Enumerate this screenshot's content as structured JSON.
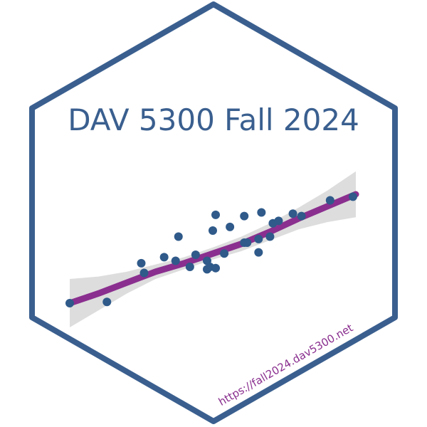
{
  "sticker": {
    "title": "DAV 5300 Fall 2024",
    "url": "https://fall2024.dav5300.net"
  },
  "colors": {
    "border": "#3a5f8f",
    "title": "#3a5f8f",
    "points": "#2f5a8a",
    "trend_line": "#8a2f8f",
    "ribbon": "#d9d9d9",
    "url": "#8a2f8f",
    "background": "#ffffff"
  },
  "chart_data": {
    "type": "scatter",
    "smooth_fit": true,
    "confidence_ribbon": true,
    "points": [
      [
        0.0,
        0.0
      ],
      [
        0.13,
        0.01
      ],
      [
        0.25,
        0.33
      ],
      [
        0.26,
        0.25
      ],
      [
        0.33,
        0.38
      ],
      [
        0.37,
        0.35
      ],
      [
        0.38,
        0.55
      ],
      [
        0.42,
        0.3
      ],
      [
        0.44,
        0.4
      ],
      [
        0.48,
        0.35
      ],
      [
        0.48,
        0.28
      ],
      [
        0.49,
        0.3
      ],
      [
        0.5,
        0.6
      ],
      [
        0.51,
        0.29
      ],
      [
        0.51,
        0.73
      ],
      [
        0.54,
        0.41
      ],
      [
        0.56,
        0.63
      ],
      [
        0.61,
        0.72
      ],
      [
        0.61,
        0.5
      ],
      [
        0.62,
        0.5
      ],
      [
        0.66,
        0.42
      ],
      [
        0.66,
        0.53
      ],
      [
        0.67,
        0.75
      ],
      [
        0.7,
        0.55
      ],
      [
        0.71,
        0.66
      ],
      [
        0.73,
        0.68
      ],
      [
        0.78,
        0.74
      ],
      [
        0.81,
        0.72
      ],
      [
        0.91,
        0.85
      ],
      [
        0.99,
        0.88
      ]
    ],
    "fit": [
      [
        0.0,
        0.0
      ],
      [
        0.1,
        0.08
      ],
      [
        0.2,
        0.17
      ],
      [
        0.3,
        0.26
      ],
      [
        0.4,
        0.33
      ],
      [
        0.5,
        0.41
      ],
      [
        0.6,
        0.49
      ],
      [
        0.7,
        0.59
      ],
      [
        0.8,
        0.7
      ],
      [
        0.9,
        0.8
      ],
      [
        1.0,
        0.9
      ]
    ],
    "ribbon_halfwidth": [
      0.2,
      0.14,
      0.09,
      0.06,
      0.05,
      0.05,
      0.06,
      0.07,
      0.09,
      0.13,
      0.19
    ]
  }
}
